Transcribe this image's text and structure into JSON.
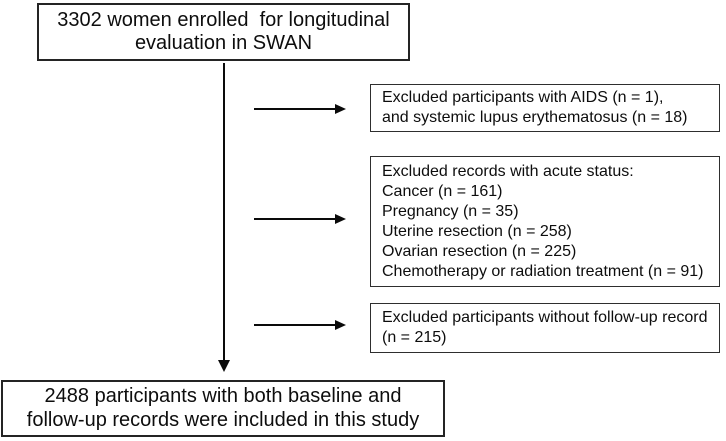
{
  "diagram": {
    "type": "flowchart",
    "background_color": "#ffffff",
    "line_color": "#0a0a0a",
    "text_color": "#0d0d0d",
    "nodes": {
      "enrollment": {
        "lines": [
          "3302 women enrolled  for longitudinal",
          "evaluation in SWAN"
        ]
      },
      "excluded_aids_lupus": {
        "lines": [
          "Excluded participants with AIDS (n = 1),",
          "and systemic lupus erythematosus (n = 18)"
        ]
      },
      "excluded_acute_status": {
        "lines": [
          "Excluded records with acute status:",
          "Cancer (n = 161)",
          "Pregnancy (n = 35)",
          "Uterine resection (n = 258)",
          "Ovarian resection (n = 225)",
          "Chemotherapy or radiation treatment (n = 91)"
        ]
      },
      "excluded_no_followup": {
        "lines": [
          "Excluded participants without follow-up record",
          "(n = 215)"
        ]
      },
      "included": {
        "lines": [
          "2488 participants with both baseline and",
          "follow-up records were included in this study"
        ]
      }
    }
  }
}
